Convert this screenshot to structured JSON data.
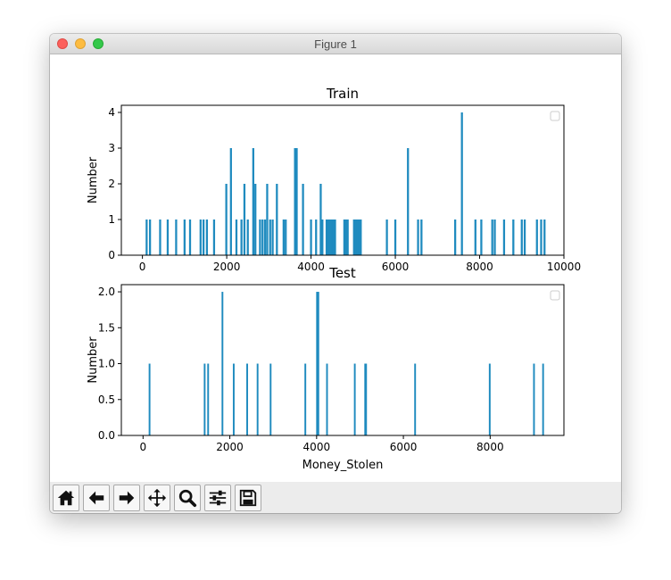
{
  "window": {
    "title": "Figure 1"
  },
  "toolbar": {
    "buttons": [
      {
        "icon": "home-icon"
      },
      {
        "icon": "back-icon"
      },
      {
        "icon": "forward-icon"
      },
      {
        "icon": "pan-icon"
      },
      {
        "icon": "zoom-icon"
      },
      {
        "icon": "configure-subplots-icon"
      },
      {
        "icon": "save-icon"
      }
    ]
  },
  "chart_data": [
    {
      "type": "bar",
      "title": "Train",
      "xlabel": "",
      "ylabel": "Number",
      "xlim": [
        -500,
        10000
      ],
      "ylim": [
        0,
        4.2
      ],
      "xticks": [
        0,
        2000,
        4000,
        6000,
        8000,
        10000
      ],
      "xtick_labels": [
        "0",
        "2000",
        "4000",
        "6000",
        "8000",
        "10000"
      ],
      "yticks": [
        0,
        1,
        2,
        3,
        4
      ],
      "ytick_labels": [
        "0",
        "1",
        "2",
        "3",
        "4"
      ],
      "bin_width": 48,
      "color": "#1f8bbf",
      "legend": "top-right (empty)",
      "bars": [
        [
          100,
          1
        ],
        [
          180,
          1
        ],
        [
          420,
          1
        ],
        [
          600,
          1
        ],
        [
          800,
          1
        ],
        [
          1000,
          1
        ],
        [
          1130,
          1
        ],
        [
          1380,
          1
        ],
        [
          1450,
          1
        ],
        [
          1530,
          1
        ],
        [
          1700,
          1
        ],
        [
          1990,
          2
        ],
        [
          2100,
          3
        ],
        [
          2230,
          1
        ],
        [
          2350,
          1
        ],
        [
          2420,
          2
        ],
        [
          2500,
          1
        ],
        [
          2630,
          3
        ],
        [
          2680,
          2
        ],
        [
          2790,
          1
        ],
        [
          2850,
          1
        ],
        [
          2910,
          1
        ],
        [
          2960,
          2
        ],
        [
          3030,
          1
        ],
        [
          3090,
          1
        ],
        [
          3190,
          2
        ],
        [
          3350,
          1
        ],
        [
          3400,
          1
        ],
        [
          3620,
          3
        ],
        [
          3660,
          3
        ],
        [
          3810,
          2
        ],
        [
          4000,
          1
        ],
        [
          4120,
          1
        ],
        [
          4230,
          2
        ],
        [
          4270,
          1
        ],
        [
          4370,
          1
        ],
        [
          4410,
          1
        ],
        [
          4450,
          1
        ],
        [
          4490,
          1
        ],
        [
          4530,
          1
        ],
        [
          4570,
          1
        ],
        [
          4790,
          1
        ],
        [
          4830,
          1
        ],
        [
          4870,
          1
        ],
        [
          5020,
          1
        ],
        [
          5060,
          1
        ],
        [
          5100,
          1
        ],
        [
          5140,
          1
        ],
        [
          5180,
          1
        ],
        [
          5800,
          1
        ],
        [
          6000,
          1
        ],
        [
          6300,
          3
        ],
        [
          6540,
          1
        ],
        [
          6620,
          1
        ],
        [
          7420,
          1
        ],
        [
          7580,
          4
        ],
        [
          7900,
          1
        ],
        [
          8040,
          1
        ],
        [
          8300,
          1
        ],
        [
          8360,
          1
        ],
        [
          8580,
          1
        ],
        [
          8800,
          1
        ],
        [
          9000,
          1
        ],
        [
          9070,
          1
        ],
        [
          9360,
          1
        ],
        [
          9460,
          1
        ],
        [
          9540,
          1
        ]
      ]
    },
    {
      "type": "bar",
      "title": "Test",
      "xlabel": "Money_Stolen",
      "ylabel": "Number",
      "xlim": [
        -500,
        9700
      ],
      "ylim": [
        0,
        2.1
      ],
      "xticks": [
        0,
        2000,
        4000,
        6000,
        8000
      ],
      "xtick_labels": [
        "0",
        "2000",
        "4000",
        "6000",
        "8000"
      ],
      "yticks": [
        0,
        0.5,
        1,
        1.5,
        2
      ],
      "ytick_labels": [
        "0.0",
        "0.5",
        "1.0",
        "1.5",
        "2.0"
      ],
      "bin_width": 40,
      "color": "#1f8bbf",
      "legend": "top-right (empty)",
      "bars": [
        [
          150,
          1
        ],
        [
          1420,
          1
        ],
        [
          1500,
          1
        ],
        [
          1830,
          2
        ],
        [
          2090,
          1
        ],
        [
          2400,
          1
        ],
        [
          2640,
          1
        ],
        [
          2940,
          1
        ],
        [
          3740,
          1
        ],
        [
          4010,
          2
        ],
        [
          4040,
          2
        ],
        [
          4240,
          1
        ],
        [
          4880,
          1
        ],
        [
          5120,
          1
        ],
        [
          5140,
          1
        ],
        [
          6270,
          1
        ],
        [
          7990,
          1
        ],
        [
          9010,
          1
        ],
        [
          9220,
          1
        ]
      ]
    }
  ]
}
